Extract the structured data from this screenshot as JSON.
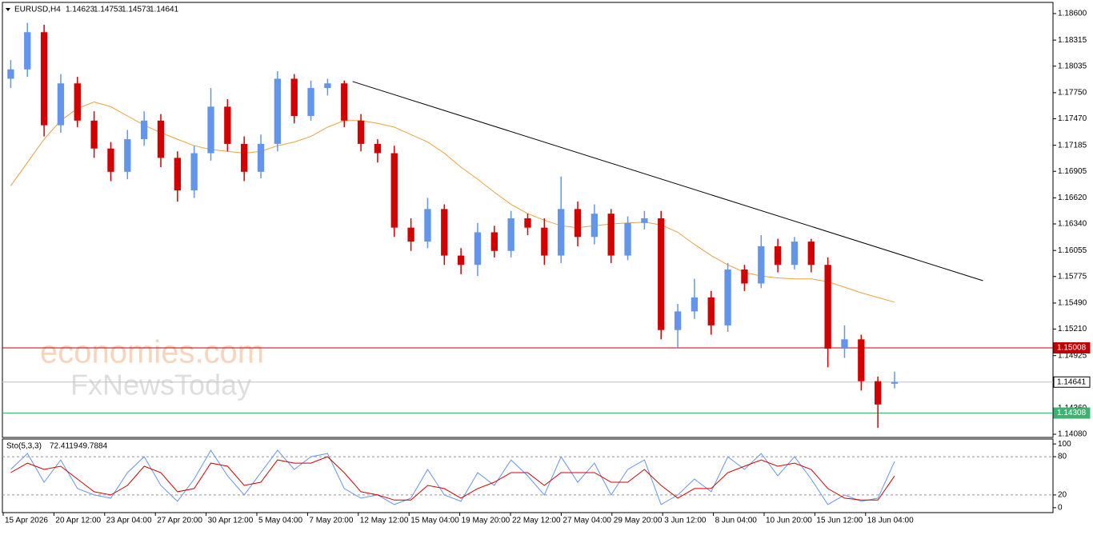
{
  "chart_data": {
    "type": "candlestick",
    "symbol": "EURUSD,H4",
    "up_color": "#6495ed",
    "down_color": "#d40000",
    "open": [
      1.179,
      1.18,
      1.184,
      1.174,
      1.1785,
      1.1745,
      1.1715,
      1.169,
      1.1725,
      1.1745,
      1.1705,
      1.167,
      1.171,
      1.176,
      1.172,
      1.169,
      1.172,
      1.179,
      1.175,
      1.178,
      1.1785,
      1.1745,
      1.172,
      1.171,
      1.163,
      1.1615,
      1.165,
      1.16,
      1.159,
      1.1625,
      1.1605,
      1.164,
      1.163,
      1.16,
      1.165,
      1.162,
      1.1645,
      1.16,
      1.1635,
      1.164,
      1.152,
      1.154,
      1.1555,
      1.1525,
      1.1585,
      1.157,
      1.161,
      1.159,
      1.1615,
      1.159,
      1.15,
      1.151,
      1.1465,
      1.14623
    ],
    "high": [
      1.181,
      1.185,
      1.1848,
      1.1795,
      1.1792,
      1.1755,
      1.1722,
      1.1735,
      1.1755,
      1.1752,
      1.1712,
      1.1718,
      1.178,
      1.1768,
      1.1728,
      1.173,
      1.1798,
      1.1795,
      1.1788,
      1.179,
      1.1788,
      1.1752,
      1.1725,
      1.1718,
      1.164,
      1.1662,
      1.1655,
      1.1608,
      1.1635,
      1.1632,
      1.1648,
      1.1645,
      1.164,
      1.1685,
      1.1658,
      1.1655,
      1.165,
      1.1642,
      1.1648,
      1.1648,
      1.1548,
      1.1575,
      1.1562,
      1.1592,
      1.159,
      1.1622,
      1.1618,
      1.162,
      1.1618,
      1.1598,
      1.1525,
      1.1515,
      1.147,
      1.14753
    ],
    "low": [
      1.178,
      1.1792,
      1.1728,
      1.1732,
      1.1738,
      1.1705,
      1.168,
      1.1682,
      1.1718,
      1.1695,
      1.1658,
      1.1662,
      1.1702,
      1.1712,
      1.168,
      1.1683,
      1.1712,
      1.1742,
      1.1745,
      1.1772,
      1.1738,
      1.1712,
      1.17,
      1.162,
      1.1605,
      1.1608,
      1.159,
      1.158,
      1.1578,
      1.1598,
      1.1598,
      1.1622,
      1.159,
      1.1592,
      1.161,
      1.1612,
      1.1592,
      1.1595,
      1.1628,
      1.151,
      1.15,
      1.1532,
      1.1515,
      1.1518,
      1.1562,
      1.1565,
      1.1582,
      1.1585,
      1.1582,
      1.148,
      1.149,
      1.1455,
      1.1415,
      1.14573
    ],
    "close": [
      1.18,
      1.184,
      1.174,
      1.1785,
      1.1745,
      1.1715,
      1.169,
      1.1725,
      1.1745,
      1.1705,
      1.167,
      1.171,
      1.176,
      1.172,
      1.169,
      1.172,
      1.179,
      1.175,
      1.178,
      1.1785,
      1.1745,
      1.172,
      1.171,
      1.163,
      1.1615,
      1.165,
      1.16,
      1.159,
      1.1625,
      1.1605,
      1.164,
      1.163,
      1.16,
      1.165,
      1.162,
      1.1645,
      1.16,
      1.1635,
      1.164,
      1.152,
      1.154,
      1.1555,
      1.1525,
      1.1585,
      1.157,
      1.161,
      1.159,
      1.1615,
      1.159,
      1.15,
      1.151,
      1.1465,
      1.144,
      1.14641
    ],
    "xlim": [
      -0.5,
      62.5
    ],
    "ylim": [
      1.14046,
      1.1872
    ],
    "yticks": [
      {
        "value": 1.186,
        "label": "1.18600"
      },
      {
        "value": 1.18315,
        "label": "1.18315"
      },
      {
        "value": 1.18035,
        "label": "1.18035"
      },
      {
        "value": 1.1775,
        "label": "1.17750"
      },
      {
        "value": 1.1747,
        "label": "1.17470"
      },
      {
        "value": 1.17185,
        "label": "1.17185"
      },
      {
        "value": 1.16905,
        "label": "1.16905"
      },
      {
        "value": 1.1662,
        "label": "1.16620"
      },
      {
        "value": 1.1634,
        "label": "1.16340"
      },
      {
        "value": 1.16055,
        "label": "1.16055"
      },
      {
        "value": 1.15775,
        "label": "1.15775"
      },
      {
        "value": 1.1549,
        "label": "1.15490"
      },
      {
        "value": 1.1521,
        "label": "1.15210"
      },
      {
        "value": 1.14925,
        "label": "1.14925"
      },
      {
        "value": 1.1436,
        "label": "1.14360"
      },
      {
        "value": 1.1408,
        "label": "1.14080"
      }
    ],
    "x_labels": [
      "15 Apr 2026",
      "20 Apr 12:00",
      "23 Apr 04:00",
      "27 Apr 20:00",
      "30 Apr 12:00",
      "5 May 04:00",
      "7 May 20:00",
      "12 May 12:00",
      "15 May 04:00",
      "19 May 20:00",
      "22 May 12:00",
      "27 May 04:00",
      "29 May 20:00",
      "3 Jun 12:00",
      "8 Jun 04:00",
      "10 Jun 20:00",
      "15 Jun 12:00",
      "18 Jun 04:00"
    ],
    "ma": {
      "color": "#e8a33d",
      "values": [
        1.1675,
        1.17,
        1.1725,
        1.1745,
        1.1758,
        1.1765,
        1.176,
        1.175,
        1.174,
        1.1732,
        1.1725,
        1.1718,
        1.1714,
        1.1712,
        1.171,
        1.1712,
        1.1718,
        1.1722,
        1.1728,
        1.1738,
        1.1745,
        1.1745,
        1.1742,
        1.1738,
        1.173,
        1.1722,
        1.171,
        1.1695,
        1.1682,
        1.1668,
        1.1655,
        1.1645,
        1.1638,
        1.1632,
        1.163,
        1.1632,
        1.1634,
        1.1635,
        1.1636,
        1.1633,
        1.1625,
        1.1612,
        1.16,
        1.159,
        1.1582,
        1.1578,
        1.1576,
        1.1575,
        1.1575,
        1.1572,
        1.1566,
        1.156,
        1.1555,
        1.155
      ]
    },
    "trendline": {
      "color": "#000000",
      "x": [
        20.5,
        58.3
      ],
      "y": [
        1.1787,
        1.1573
      ]
    },
    "levels": [
      {
        "value": 1.15008,
        "color": "#c00000",
        "label_fill": "#c00000",
        "label_color": "#ffffff"
      },
      {
        "value": 1.14641,
        "color": "#c0c0c0",
        "label_fill": "#ffffff",
        "label_color": "#000000"
      },
      {
        "value": 1.14308,
        "color": "#3cb371",
        "label_fill": "#3cb371",
        "label_color": "#ffffff"
      }
    ],
    "watermark": [
      "economies.com",
      "FxNewsToday"
    ],
    "stochastic": {
      "name": "Sto(5,3,3)",
      "ylim": [
        -7.7,
        107.7
      ],
      "yticks": [
        100,
        80,
        20,
        0
      ],
      "levels": [
        80,
        20
      ],
      "series": [
        {
          "color": "#6495ed",
          "values": [
            60,
            85,
            40,
            75,
            30,
            20,
            15,
            55,
            80,
            35,
            10,
            45,
            90,
            50,
            20,
            55,
            90,
            60,
            80,
            85,
            30,
            15,
            20,
            5,
            15,
            60,
            20,
            10,
            55,
            35,
            75,
            50,
            20,
            80,
            40,
            70,
            20,
            60,
            75,
            5,
            20,
            45,
            25,
            80,
            60,
            85,
            50,
            80,
            45,
            5,
            20,
            10,
            15,
            72.4119
          ]
        },
        {
          "color": "#d40000",
          "values": [
            55,
            70,
            60,
            65,
            45,
            25,
            20,
            35,
            65,
            55,
            25,
            30,
            70,
            65,
            35,
            40,
            75,
            70,
            70,
            80,
            55,
            25,
            20,
            12,
            12,
            35,
            30,
            15,
            30,
            40,
            55,
            55,
            35,
            55,
            55,
            55,
            40,
            40,
            60,
            35,
            15,
            30,
            30,
            55,
            65,
            75,
            65,
            70,
            60,
            30,
            15,
            12,
            12,
            49.7884
          ]
        }
      ]
    }
  }
}
